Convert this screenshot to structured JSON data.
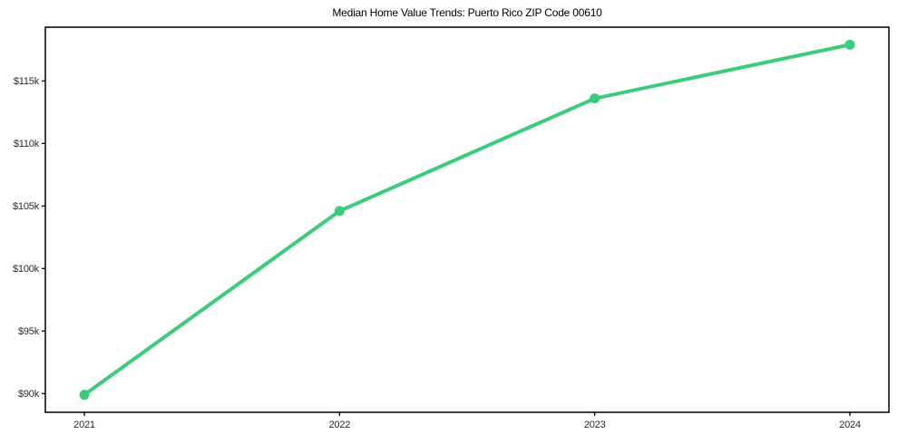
{
  "chart_data": {
    "type": "line",
    "title": "Median Home Value Trends: Puerto Rico ZIP Code 00610",
    "x": [
      "2021",
      "2022",
      "2023",
      "2024"
    ],
    "series": [
      {
        "name": "Median Home Value",
        "values": [
          89900,
          104600,
          113600,
          117900
        ],
        "color": "#3dcb7d"
      }
    ],
    "y_ticks": [
      90000,
      95000,
      100000,
      105000,
      110000,
      115000
    ],
    "y_tick_labels": [
      "$90k",
      "$95k",
      "$100k",
      "$105k",
      "$110k",
      "$115k"
    ],
    "ylim": [
      88500,
      119300
    ],
    "xlabel": "",
    "ylabel": "",
    "grid": false,
    "legend": "none",
    "axis_color": "#000000",
    "tick_text_color": "#2b2b2b",
    "background_color": "#ffffff"
  }
}
